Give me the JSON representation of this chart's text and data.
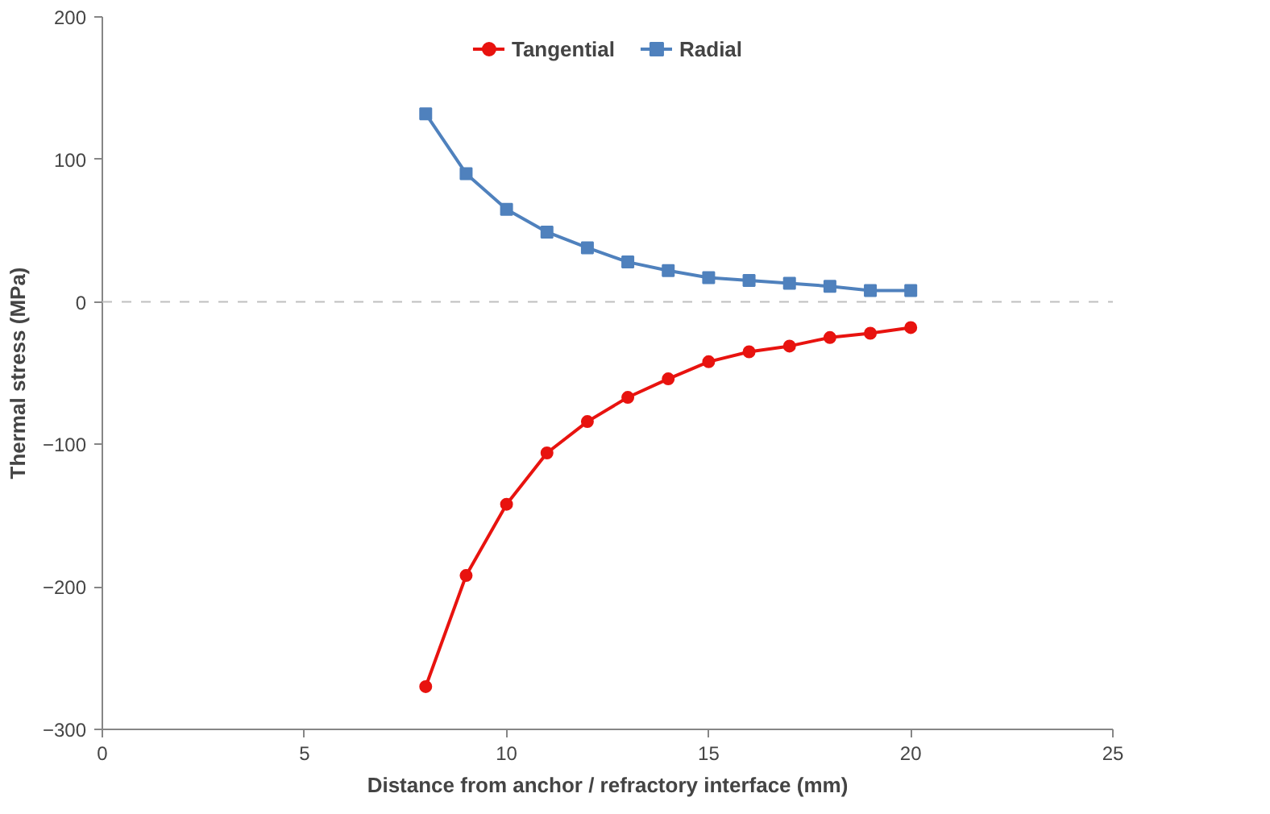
{
  "chart_data": {
    "type": "line",
    "xlabel": "Distance from anchor / refractory interface (mm)",
    "ylabel": "Thermal stress (MPa)",
    "x": [
      8,
      9,
      10,
      11,
      12,
      13,
      14,
      15,
      16,
      17,
      18,
      19,
      20
    ],
    "series": [
      {
        "name": "Tangential",
        "color": "#e8130f",
        "marker": "circle",
        "values": [
          -270,
          -192,
          -142,
          -106,
          -84,
          -67,
          -54,
          -42,
          -35,
          -31,
          -25,
          -22,
          -18
        ]
      },
      {
        "name": "Radial",
        "color": "#4f81bd",
        "marker": "square",
        "values": [
          132,
          90,
          65,
          49,
          38,
          28,
          22,
          17,
          15,
          13,
          11,
          8,
          8
        ]
      }
    ],
    "xlim": [
      0,
      25
    ],
    "xticks": [
      0,
      5,
      10,
      15,
      20,
      25
    ],
    "ylim": [
      -300,
      200
    ],
    "yticks": [
      -300,
      -200,
      -100,
      0,
      100,
      200
    ],
    "ref_lines": [
      {
        "axis": "y",
        "value": 0,
        "color": "#bfbfbf",
        "line_style": "dashed"
      }
    ],
    "grid": false,
    "legend": "top",
    "line_style": "solid"
  }
}
